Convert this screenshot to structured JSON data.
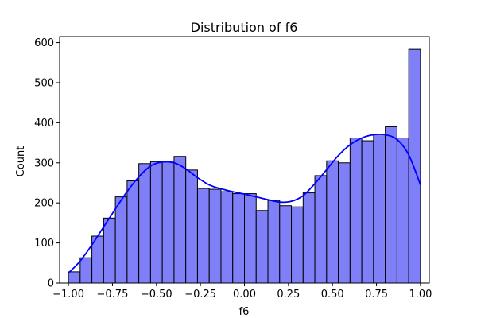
{
  "chart_data": {
    "type": "bar",
    "title": "Distribution of f6",
    "xlabel": "f6",
    "ylabel": "Count",
    "xlim": [
      -1.05,
      1.05
    ],
    "ylim": [
      0,
      615
    ],
    "x_ticks": [
      -1.0,
      -0.75,
      -0.5,
      -0.25,
      0.0,
      0.25,
      0.5,
      0.75,
      1.0
    ],
    "x_tick_labels": [
      "−1.00",
      "−0.75",
      "−0.50",
      "−0.25",
      "0.00",
      "0.25",
      "0.50",
      "0.75",
      "1.00"
    ],
    "y_ticks": [
      0,
      100,
      200,
      300,
      400,
      500,
      600
    ],
    "y_tick_labels": [
      "0",
      "100",
      "200",
      "300",
      "400",
      "500",
      "600"
    ],
    "bin_range": [
      -1.0,
      1.0
    ],
    "bin_count": 30,
    "values": [
      28,
      63,
      117,
      162,
      215,
      255,
      298,
      303,
      302,
      316,
      282,
      236,
      234,
      228,
      223,
      223,
      181,
      206,
      193,
      190,
      225,
      268,
      305,
      300,
      362,
      355,
      372,
      390,
      362,
      583
    ],
    "kde": {
      "x": [
        -1.0,
        -0.933,
        -0.867,
        -0.8,
        -0.733,
        -0.667,
        -0.6,
        -0.533,
        -0.467,
        -0.4,
        -0.333,
        -0.267,
        -0.2,
        -0.133,
        -0.067,
        0.0,
        0.067,
        0.133,
        0.2,
        0.267,
        0.333,
        0.4,
        0.467,
        0.533,
        0.6,
        0.667,
        0.733,
        0.8,
        0.867,
        0.933,
        1.0
      ],
      "y": [
        25,
        55,
        95,
        140,
        185,
        228,
        265,
        292,
        302,
        300,
        285,
        263,
        245,
        235,
        228,
        222,
        215,
        208,
        202,
        204,
        218,
        248,
        283,
        318,
        345,
        362,
        370,
        370,
        358,
        320,
        245
      ]
    },
    "grid": false,
    "colors": {
      "bar_fill": "#7f7ff7",
      "bar_edge": "#000000",
      "kde_line": "#0000ff",
      "axes": "#000000"
    }
  }
}
